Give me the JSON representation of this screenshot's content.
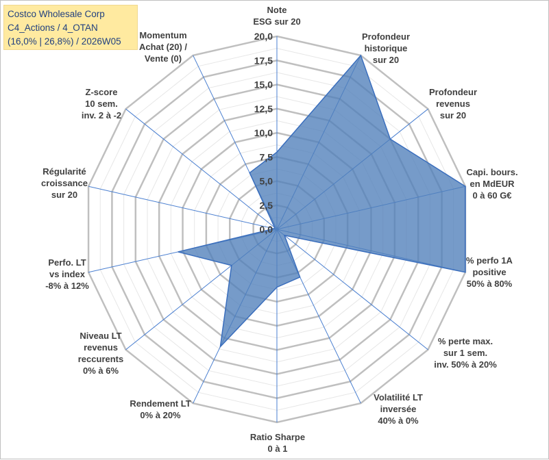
{
  "title": {
    "company": "Costco Wholesale Corp",
    "category": "C4_Actions / 4_OTAN",
    "stats": "(16,0% | 26,8%) / 2026W05"
  },
  "chart_data": {
    "type": "radar",
    "ylim": [
      0,
      20
    ],
    "ticks": [
      "0,0",
      "2,5",
      "5,0",
      "7,5",
      "10,0",
      "12,5",
      "15,0",
      "17,5",
      "20,0"
    ],
    "grid": "on",
    "axes": [
      {
        "lines": [
          "Note",
          "ESG sur 20"
        ]
      },
      {
        "lines": [
          "Profondeur",
          "historique",
          "sur 20"
        ]
      },
      {
        "lines": [
          "Profondeur",
          "revenus",
          "sur 20"
        ]
      },
      {
        "lines": [
          "Capi. bours.",
          "en MdEUR",
          "0 à 60 G€"
        ]
      },
      {
        "lines": [
          "% perfo 1A",
          "positive",
          "50% à 80%"
        ]
      },
      {
        "lines": [
          "% perte max.",
          "sur 1 sem.",
          "inv. 50% à 20%"
        ]
      },
      {
        "lines": [
          "Volatilité LT",
          "inversée",
          "40% à 0%"
        ]
      },
      {
        "lines": [
          "Ratio Sharpe",
          "0 à 1"
        ]
      },
      {
        "lines": [
          "Rendement LT",
          "0% à 20%"
        ]
      },
      {
        "lines": [
          "Niveau LT",
          "revenus",
          "reccurents",
          "0% à 6%"
        ]
      },
      {
        "lines": [
          "Perfo. LT",
          "vs index",
          "-8% à 12%"
        ]
      },
      {
        "lines": [
          "Régularité",
          "croissance",
          "sur 20"
        ]
      },
      {
        "lines": [
          "Z-score",
          "10 sem.",
          "inv. 2 à -2"
        ]
      },
      {
        "lines": [
          "Momentum",
          "Achat (20) /",
          "Vente (0)"
        ]
      }
    ],
    "series": [
      {
        "name": "Costco Wholesale Corp",
        "values": [
          8.0,
          20.0,
          15.0,
          20.0,
          20.0,
          1.0,
          5.5,
          6.0,
          13.5,
          6.0,
          10.5,
          0.3,
          0.3,
          6.5
        ]
      }
    ],
    "colors": {
      "fill": "#4f7fba",
      "line": "#3a6ebd",
      "grid": "#bfbfbf",
      "spoke": "#4a7fd0"
    }
  }
}
